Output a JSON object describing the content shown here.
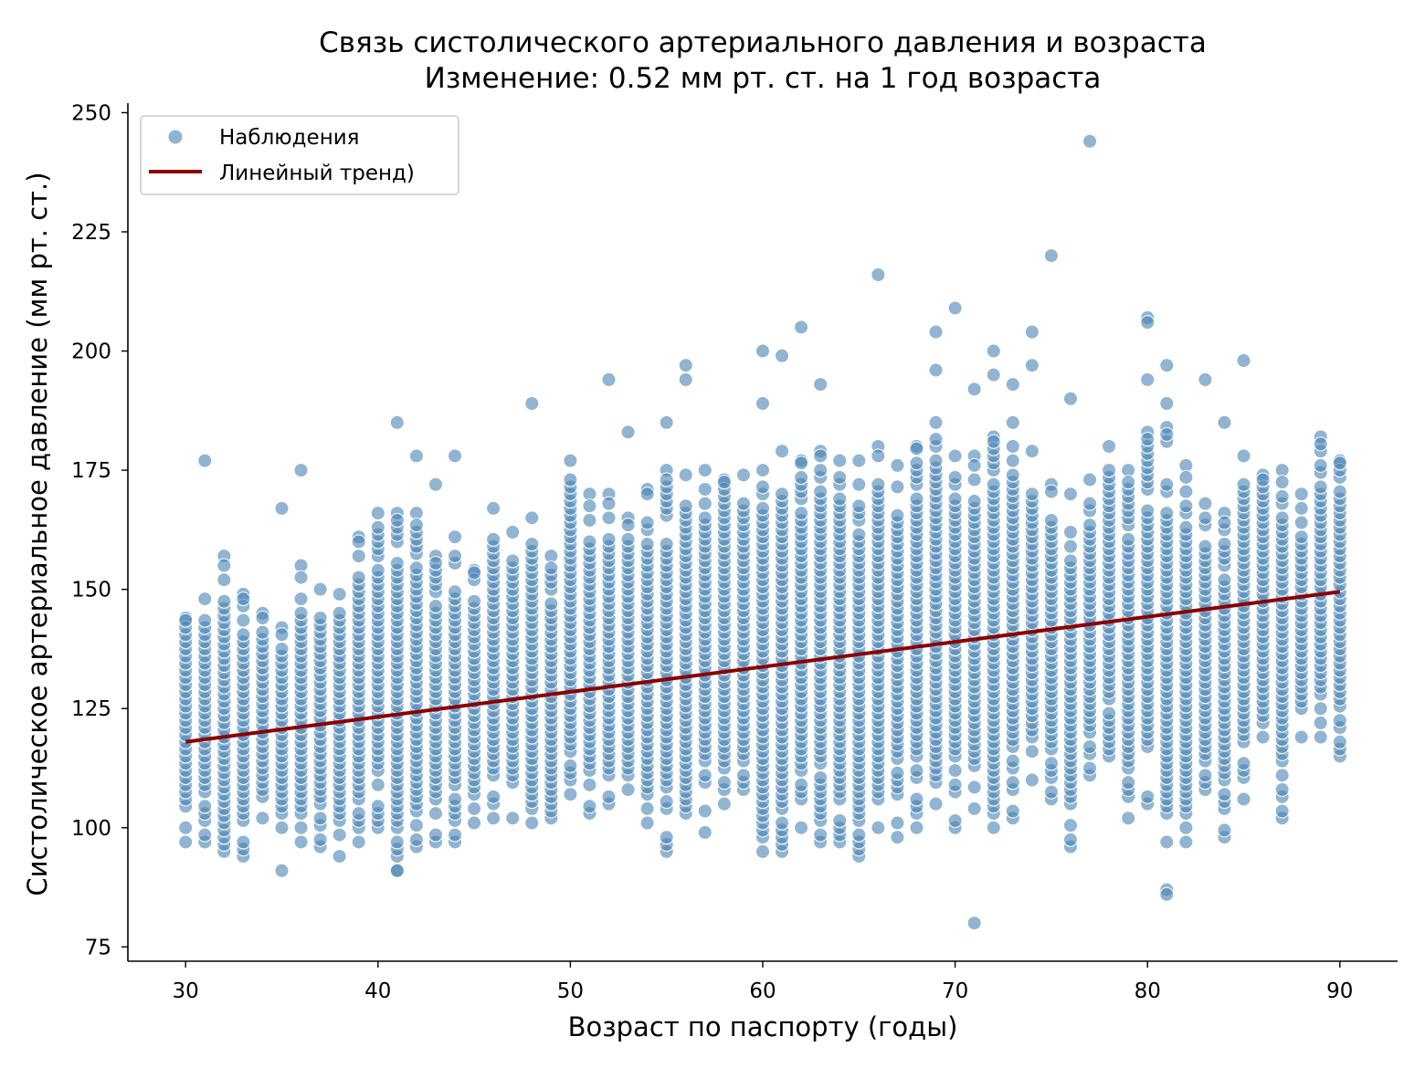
{
  "chart_data": {
    "type": "scatter",
    "title": "Связь систолического артериального давления и возраста",
    "subtitle": "Изменение: 0.52 мм рт. ст. на 1 год возраста",
    "xlabel": "Возраст по паспорту (годы)",
    "ylabel": "Систолическое артериальное давление (мм рт. ст.)",
    "xlim": [
      27,
      93
    ],
    "ylim": [
      72,
      252
    ],
    "xticks": [
      30,
      40,
      50,
      60,
      70,
      80,
      90
    ],
    "yticks": [
      75,
      100,
      125,
      150,
      175,
      200,
      225,
      250
    ],
    "grid": false,
    "legend": {
      "placement": "top-left",
      "entries": [
        {
          "label": "Наблюдения",
          "kind": "marker",
          "color": "#4682b4"
        },
        {
          "label": "Линейный тренд)",
          "kind": "line",
          "color": "#8b0000"
        }
      ]
    },
    "series": [
      {
        "name": "Наблюдения",
        "kind": "scatter",
        "color": "#4682b4",
        "age_ranges": [
          [
            30,
            97,
            144
          ],
          [
            31,
            97,
            148
          ],
          [
            32,
            95,
            157
          ],
          [
            33,
            94,
            149
          ],
          [
            34,
            102,
            145
          ],
          [
            35,
            100,
            142
          ],
          [
            36,
            97,
            155
          ],
          [
            37,
            96,
            150
          ],
          [
            38,
            94,
            149
          ],
          [
            39,
            97,
            161
          ],
          [
            40,
            100,
            166
          ],
          [
            41,
            91,
            166
          ],
          [
            42,
            96,
            166
          ],
          [
            43,
            97,
            157
          ],
          [
            44,
            97,
            161
          ],
          [
            45,
            101,
            154
          ],
          [
            46,
            102,
            167
          ],
          [
            47,
            102,
            162
          ],
          [
            48,
            101,
            165
          ],
          [
            49,
            102,
            157
          ],
          [
            50,
            107,
            177
          ],
          [
            51,
            103,
            170
          ],
          [
            52,
            105,
            170
          ],
          [
            53,
            108,
            165
          ],
          [
            54,
            101,
            171
          ],
          [
            55,
            95,
            175
          ],
          [
            56,
            103,
            174
          ],
          [
            57,
            99,
            175
          ],
          [
            58,
            105,
            173
          ],
          [
            59,
            108,
            174
          ],
          [
            60,
            95,
            175
          ],
          [
            61,
            95,
            179
          ],
          [
            62,
            100,
            177
          ],
          [
            63,
            97,
            179
          ],
          [
            64,
            97,
            177
          ],
          [
            65,
            94,
            177
          ],
          [
            66,
            100,
            180
          ],
          [
            67,
            98,
            176
          ],
          [
            68,
            100,
            180
          ],
          [
            69,
            105,
            185
          ],
          [
            70,
            100,
            178
          ],
          [
            71,
            104,
            178
          ],
          [
            72,
            100,
            182
          ],
          [
            73,
            102,
            185
          ],
          [
            74,
            110,
            179
          ],
          [
            75,
            106,
            172
          ],
          [
            76,
            96,
            170
          ],
          [
            77,
            111,
            173
          ],
          [
            78,
            115,
            180
          ],
          [
            79,
            102,
            175
          ],
          [
            80,
            105,
            183
          ],
          [
            81,
            97,
            184
          ],
          [
            82,
            97,
            176
          ],
          [
            83,
            108,
            168
          ],
          [
            84,
            98,
            166
          ],
          [
            85,
            106,
            178
          ],
          [
            86,
            119,
            174
          ],
          [
            87,
            102,
            175
          ],
          [
            88,
            119,
            170
          ],
          [
            89,
            119,
            182
          ],
          [
            90,
            115,
            177
          ]
        ],
        "outliers": [
          [
            31,
            177
          ],
          [
            35,
            167
          ],
          [
            36,
            175
          ],
          [
            41,
            185
          ],
          [
            42,
            178
          ],
          [
            43,
            172
          ],
          [
            44,
            178
          ],
          [
            48,
            189
          ],
          [
            52,
            194
          ],
          [
            53,
            183
          ],
          [
            55,
            185
          ],
          [
            56,
            197
          ],
          [
            56,
            194
          ],
          [
            60,
            200
          ],
          [
            60,
            189
          ],
          [
            61,
            199
          ],
          [
            62,
            205
          ],
          [
            63,
            193
          ],
          [
            66,
            216
          ],
          [
            69,
            204
          ],
          [
            69,
            196
          ],
          [
            70,
            209
          ],
          [
            71,
            192
          ],
          [
            72,
            200
          ],
          [
            72,
            195
          ],
          [
            73,
            193
          ],
          [
            74,
            204
          ],
          [
            74,
            197
          ],
          [
            75,
            220
          ],
          [
            76,
            190
          ],
          [
            77,
            244
          ],
          [
            80,
            207
          ],
          [
            80,
            206
          ],
          [
            80,
            194
          ],
          [
            81,
            197
          ],
          [
            81,
            189
          ],
          [
            83,
            194
          ],
          [
            84,
            185
          ],
          [
            85,
            198
          ],
          [
            35,
            91
          ],
          [
            41,
            91
          ],
          [
            71,
            80
          ],
          [
            81,
            87
          ],
          [
            81,
            86
          ]
        ]
      },
      {
        "name": "Линейный тренд)",
        "kind": "line",
        "color": "#8b0000",
        "x": [
          30,
          90
        ],
        "y": [
          118.0,
          149.5
        ],
        "slope": 0.52
      }
    ]
  }
}
